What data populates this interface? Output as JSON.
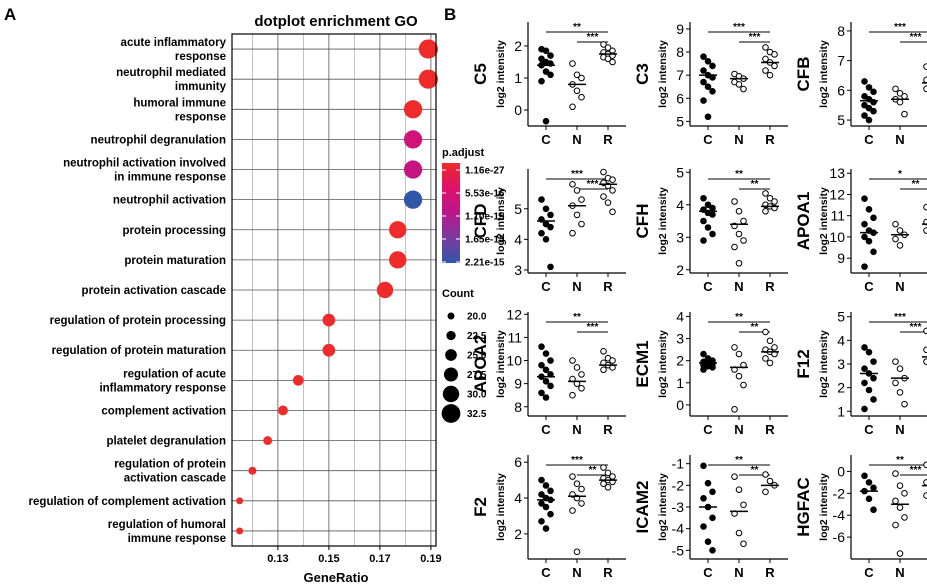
{
  "panel_a_label": "A",
  "panel_b_label": "B",
  "chart_data": [
    {
      "type": "scatter",
      "subtype": "dotplot",
      "title": "dotplot enrichment GO",
      "xlabel": "GeneRatio",
      "ylabel": "",
      "xlim": [
        0.112,
        0.192
      ],
      "xticks": [
        0.13,
        0.15,
        0.17,
        0.19
      ],
      "xtick_labels": [
        "0.13",
        "0.15",
        "0.17",
        "0.19"
      ],
      "grid": true,
      "categories": [
        [
          "acute inflammatory",
          "response"
        ],
        [
          "neutrophil mediated",
          "immunity"
        ],
        [
          "humoral immune",
          "response"
        ],
        [
          "neutrophil degranulation"
        ],
        [
          "neutrophil activation involved",
          "in immune response"
        ],
        [
          "neutrophil activation"
        ],
        [
          "protein processing"
        ],
        [
          "protein maturation"
        ],
        [
          "protein activation cascade"
        ],
        [
          "regulation of protein processing"
        ],
        [
          "regulation of protein maturation"
        ],
        [
          "regulation of acute",
          "inflammatory response"
        ],
        [
          "complement activation"
        ],
        [
          "platelet degranulation"
        ],
        [
          "regulation of protein",
          "activation cascade"
        ],
        [
          "regulation of complement activation"
        ],
        [
          "regulation of humoral",
          "immune response"
        ]
      ],
      "gene_ratio": [
        0.189,
        0.189,
        0.183,
        0.183,
        0.183,
        0.183,
        0.177,
        0.177,
        0.172,
        0.15,
        0.15,
        0.138,
        0.132,
        0.126,
        0.12,
        0.115,
        0.115
      ],
      "count": [
        33,
        33,
        32,
        32,
        32,
        32,
        31,
        31,
        30,
        26,
        26,
        24,
        23,
        22,
        21,
        20,
        20
      ],
      "p_adjust": [
        1.16e-27,
        1.2e-27,
        1.16e-27,
        7.8e-16,
        9.2e-16,
        2.2e-15,
        2.5e-26,
        2.6e-26,
        5e-26,
        3e-26,
        3.1e-26,
        5.2e-26,
        3.3e-26,
        2e-25,
        5e-26,
        3e-25,
        4e-25
      ],
      "color_legend": {
        "title": "p.adjust",
        "labels": [
          "1.16e-27",
          "5.53e-16",
          "1.10e-15",
          "1.65e-15",
          "2.21e-15"
        ],
        "colors": [
          "#ee2a2a",
          "#e0106a",
          "#b8188c",
          "#7a3aa0",
          "#2f56a8"
        ]
      },
      "size_legend": {
        "title": "Count",
        "labels": [
          "20.0",
          "22.5",
          "25.0",
          "27.5",
          "30.0",
          "32.5"
        ],
        "values": [
          20.0,
          22.5,
          25.0,
          27.5,
          30.0,
          32.5
        ]
      }
    },
    {
      "type": "scatter",
      "subtype": "strip_plot_grid",
      "groups": [
        "C",
        "N",
        "R"
      ],
      "ylabel": "log2 intensity",
      "panels": [
        {
          "protein": "C5",
          "yticks": [
            0,
            1,
            2
          ],
          "ylim": [
            -0.5,
            2.75
          ],
          "sig": [
            {
              "from": "C",
              "to": "R",
              "label": "**"
            },
            {
              "from": "N",
              "to": "R",
              "label": "***"
            }
          ],
          "medians": [
            1.4,
            0.8,
            1.75
          ],
          "C": [
            1.9,
            1.85,
            1.7,
            1.6,
            1.5,
            1.45,
            1.4,
            1.2,
            1.1,
            0.9,
            -0.35
          ],
          "N": [
            1.45,
            1.1,
            1.0,
            0.8,
            0.6,
            0.4,
            0.1
          ],
          "R": [
            2.05,
            1.95,
            1.85,
            1.8,
            1.75,
            1.7,
            1.65,
            1.6,
            1.5
          ]
        },
        {
          "protein": "C3",
          "yticks": [
            5,
            6,
            7,
            8,
            9
          ],
          "ylim": [
            4.8,
            9.3
          ],
          "sig": [
            {
              "from": "C",
              "to": "R",
              "label": "***"
            },
            {
              "from": "N",
              "to": "R",
              "label": "***"
            }
          ],
          "medians": [
            7.0,
            6.85,
            7.55
          ],
          "C": [
            7.8,
            7.6,
            7.4,
            7.2,
            7.0,
            6.9,
            6.7,
            6.5,
            6.3,
            5.9,
            5.2
          ],
          "N": [
            7.05,
            6.95,
            6.85,
            6.7,
            6.6,
            6.4
          ],
          "R": [
            8.2,
            8.0,
            7.9,
            7.7,
            7.55,
            7.4,
            7.2,
            7.0
          ]
        },
        {
          "protein": "CFB",
          "yticks": [
            5,
            6,
            7,
            8
          ],
          "ylim": [
            4.8,
            8.3
          ],
          "sig": [
            {
              "from": "C",
              "to": "R",
              "label": "***"
            },
            {
              "from": "N",
              "to": "R",
              "label": "***"
            }
          ],
          "medians": [
            5.65,
            5.7,
            6.25
          ],
          "C": [
            6.3,
            6.1,
            5.95,
            5.8,
            5.7,
            5.6,
            5.5,
            5.4,
            5.3,
            5.15,
            5.0
          ],
          "N": [
            6.05,
            5.9,
            5.8,
            5.7,
            5.6,
            5.2
          ],
          "R": [
            6.8,
            6.6,
            6.5,
            6.35,
            6.25,
            6.15,
            6.05,
            5.95
          ]
        },
        {
          "protein": "CFD",
          "yticks": [
            3,
            4,
            5
          ],
          "ylim": [
            2.9,
            6.3
          ],
          "sig": [
            {
              "from": "C",
              "to": "R",
              "label": "***"
            },
            {
              "from": "N",
              "to": "R",
              "label": "***"
            }
          ],
          "medians": [
            4.6,
            5.1,
            5.8
          ],
          "C": [
            5.3,
            5.0,
            4.8,
            4.65,
            4.5,
            4.4,
            4.2,
            4.0,
            3.1
          ],
          "N": [
            5.8,
            5.6,
            5.3,
            5.1,
            4.8,
            4.5,
            4.2
          ],
          "R": [
            6.2,
            6.0,
            5.95,
            5.85,
            5.75,
            5.6,
            5.4,
            5.2,
            4.9
          ]
        },
        {
          "protein": "CFH",
          "yticks": [
            2,
            3,
            4,
            5
          ],
          "ylim": [
            1.9,
            5.1
          ],
          "sig": [
            {
              "from": "C",
              "to": "R",
              "label": "**"
            },
            {
              "from": "N",
              "to": "R",
              "label": "**"
            }
          ],
          "medians": [
            3.8,
            3.4,
            3.95
          ],
          "C": [
            4.2,
            4.0,
            3.9,
            3.85,
            3.75,
            3.7,
            3.5,
            3.3,
            3.1,
            2.9
          ],
          "N": [
            4.1,
            3.8,
            3.5,
            3.35,
            3.1,
            2.9,
            2.7,
            2.2
          ],
          "R": [
            4.35,
            4.2,
            4.1,
            4.0,
            3.95,
            3.9,
            3.8
          ]
        },
        {
          "protein": "APOA1",
          "yticks": [
            9,
            10,
            11,
            12,
            13
          ],
          "ylim": [
            8.3,
            13.2
          ],
          "sig": [
            {
              "from": "C",
              "to": "R",
              "label": "*"
            },
            {
              "from": "N",
              "to": "R",
              "label": "**"
            }
          ],
          "medians": [
            10.2,
            10.1,
            10.6
          ],
          "C": [
            11.8,
            11.3,
            10.9,
            10.6,
            10.3,
            10.2,
            10.0,
            9.8,
            9.3,
            8.6
          ],
          "N": [
            10.6,
            10.3,
            10.1,
            9.9,
            9.6
          ],
          "R": [
            11.4,
            11.2,
            10.9,
            10.7,
            10.6,
            10.5,
            10.3,
            10.1
          ]
        },
        {
          "protein": "APOA2",
          "yticks": [
            8,
            9,
            10,
            11,
            12
          ],
          "ylim": [
            7.6,
            12.1
          ],
          "sig": [
            {
              "from": "C",
              "to": "R",
              "label": "**"
            },
            {
              "from": "N",
              "to": "R",
              "label": "***"
            }
          ],
          "medians": [
            9.3,
            9.1,
            9.8
          ],
          "C": [
            10.6,
            10.3,
            10.0,
            9.8,
            9.6,
            9.4,
            9.3,
            9.1,
            8.9,
            8.6,
            8.4
          ],
          "N": [
            10.0,
            9.7,
            9.4,
            9.2,
            9.0,
            8.8,
            8.5
          ],
          "R": [
            10.4,
            10.1,
            10.0,
            9.9,
            9.8,
            9.7,
            9.6
          ]
        },
        {
          "protein": "ECM1",
          "yticks": [
            0,
            1,
            2,
            3,
            4
          ],
          "ylim": [
            -0.5,
            4.2
          ],
          "sig": [
            {
              "from": "C",
              "to": "R",
              "label": "**"
            },
            {
              "from": "N",
              "to": "R",
              "label": "**"
            }
          ],
          "medians": [
            1.9,
            1.7,
            2.4
          ],
          "C": [
            2.3,
            2.1,
            2.0,
            1.95,
            1.9,
            1.85,
            1.8,
            1.75,
            1.7,
            1.6
          ],
          "N": [
            2.6,
            2.3,
            1.8,
            1.6,
            1.3,
            0.9,
            -0.2
          ],
          "R": [
            3.3,
            2.9,
            2.6,
            2.5,
            2.4,
            2.3,
            2.1,
            1.9
          ]
        },
        {
          "protein": "F12",
          "yticks": [
            1,
            2,
            3,
            4,
            5
          ],
          "ylim": [
            0.8,
            5.2
          ],
          "sig": [
            {
              "from": "C",
              "to": "R",
              "label": "***"
            },
            {
              "from": "N",
              "to": "R",
              "label": "***"
            }
          ],
          "medians": [
            2.6,
            2.4,
            3.3
          ],
          "C": [
            3.7,
            3.5,
            3.1,
            2.8,
            2.6,
            2.4,
            2.2,
            1.9,
            1.5,
            1.1
          ],
          "N": [
            3.1,
            2.8,
            2.4,
            2.2,
            1.8,
            1.3
          ],
          "R": [
            4.4,
            4.2,
            3.9,
            3.6,
            3.4,
            3.3,
            3.1
          ]
        },
        {
          "protein": "F2",
          "yticks": [
            2,
            4,
            6
          ],
          "ylim": [
            0.6,
            6.4
          ],
          "sig": [
            {
              "from": "C",
              "to": "R",
              "label": "***"
            },
            {
              "from": "N",
              "to": "R",
              "label": "**"
            }
          ],
          "medians": [
            3.9,
            4.1,
            5.0
          ],
          "C": [
            5.0,
            4.7,
            4.4,
            4.2,
            4.0,
            3.9,
            3.7,
            3.5,
            3.1,
            2.7,
            2.3
          ],
          "N": [
            5.2,
            4.8,
            4.5,
            4.2,
            4.0,
            3.7,
            3.3,
            1.0
          ],
          "R": [
            5.7,
            5.4,
            5.2,
            5.1,
            5.0,
            4.9,
            4.8,
            4.6
          ]
        },
        {
          "protein": "ICAM2",
          "yticks": [
            -5,
            -4,
            -3,
            -2,
            -1
          ],
          "ylim": [
            -5.4,
            -0.6
          ],
          "sig": [
            {
              "from": "C",
              "to": "R",
              "label": "**"
            },
            {
              "from": "N",
              "to": "R",
              "label": "**"
            }
          ],
          "medians": [
            -3.0,
            -3.2,
            -2.0
          ],
          "C": [
            -1.1,
            -1.9,
            -2.3,
            -2.6,
            -3.0,
            -3.5,
            -3.9,
            -4.6,
            -5.0
          ],
          "N": [
            -1.6,
            -2.2,
            -2.9,
            -3.3,
            -4.2,
            -4.7
          ],
          "R": [
            -1.5,
            -1.8,
            -2.0,
            -2.3
          ]
        },
        {
          "protein": "HGFAC",
          "yticks": [
            -6,
            -4,
            -2,
            0
          ],
          "ylim": [
            -8.0,
            1.5
          ],
          "sig": [
            {
              "from": "C",
              "to": "R",
              "label": "**"
            },
            {
              "from": "N",
              "to": "R",
              "label": "***"
            }
          ],
          "medians": [
            -1.8,
            -3.0,
            -1.3
          ],
          "C": [
            -0.4,
            -1.0,
            -1.5,
            -1.8,
            -2.5,
            -3.5
          ],
          "N": [
            -0.2,
            -1.3,
            -2.0,
            -2.7,
            -3.3,
            -4.2,
            -4.9,
            -7.5
          ],
          "R": [
            0.6,
            0.0,
            -0.6,
            -1.0,
            -1.3,
            -1.7,
            -2.2,
            -2.8
          ]
        }
      ]
    }
  ]
}
